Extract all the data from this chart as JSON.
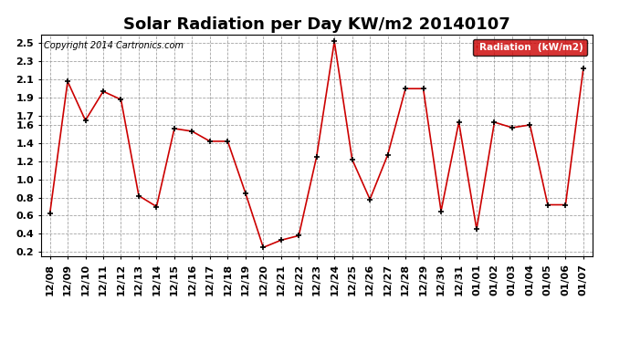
{
  "title": "Solar Radiation per Day KW/m2 20140107",
  "copyright": "Copyright 2014 Cartronics.com",
  "legend_label": "Radiation  (kW/m2)",
  "x_labels": [
    "12/08",
    "12/09",
    "12/10",
    "12/11",
    "12/12",
    "12/13",
    "12/14",
    "12/15",
    "12/16",
    "12/17",
    "12/18",
    "12/19",
    "12/20",
    "12/21",
    "12/22",
    "12/23",
    "12/24",
    "12/25",
    "12/26",
    "12/27",
    "12/28",
    "12/29",
    "12/30",
    "12/31",
    "01/01",
    "01/02",
    "01/03",
    "01/04",
    "01/05",
    "01/06",
    "01/07"
  ],
  "values": [
    0.62,
    2.08,
    1.65,
    1.97,
    1.88,
    0.82,
    0.7,
    1.56,
    1.53,
    1.42,
    1.42,
    0.85,
    0.25,
    0.33,
    0.38,
    1.25,
    2.52,
    1.22,
    0.78,
    1.27,
    2.0,
    2.0,
    0.65,
    1.63,
    0.45,
    1.63,
    1.57,
    1.6,
    0.72,
    0.72,
    2.22
  ],
  "line_color": "#cc0000",
  "marker": "+",
  "marker_color": "#000000",
  "background_color": "#ffffff",
  "grid_color": "#999999",
  "ylim": [
    0.15,
    2.6
  ],
  "yticks": [
    0.2,
    0.4,
    0.6,
    0.8,
    1.0,
    1.2,
    1.4,
    1.6,
    1.7,
    1.9,
    2.1,
    2.3,
    2.5
  ],
  "title_fontsize": 13,
  "tick_fontsize": 8,
  "legend_bg": "#cc0000",
  "legend_fg": "#ffffff"
}
